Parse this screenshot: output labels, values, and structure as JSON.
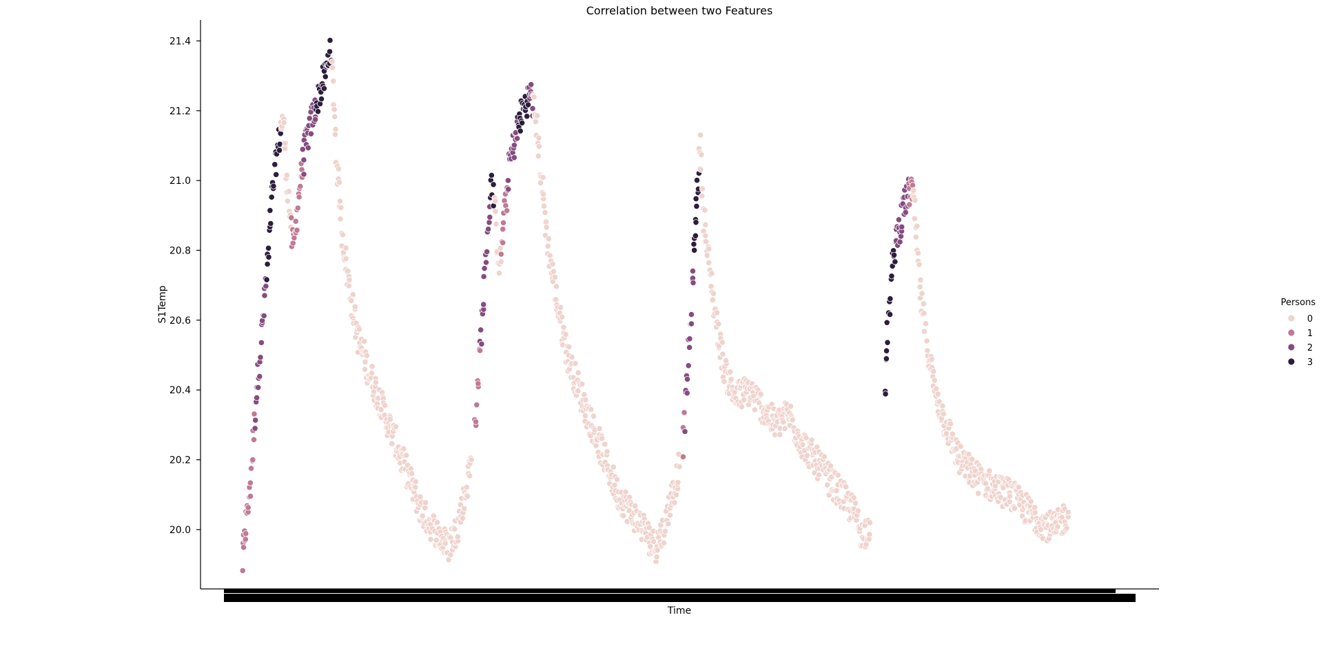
{
  "chart_data": {
    "type": "scatter",
    "title": "Correlation between two Features",
    "xlabel": "Time",
    "ylabel": "S1Temp",
    "ylim": [
      19.83,
      21.46
    ],
    "yticks": [
      "20.0",
      "20.2",
      "20.4",
      "20.6",
      "20.8",
      "21.0",
      "21.2",
      "21.4"
    ],
    "x_tick_labels_overlapping": true,
    "grid": false,
    "legend": {
      "title": "Persons",
      "placement": "right",
      "entries": [
        {
          "label": "0",
          "color": "#efd3cd"
        },
        {
          "label": "1",
          "color": "#c07a93"
        },
        {
          "label": "2",
          "color": "#854c80"
        },
        {
          "label": "3",
          "color": "#2d1d3d"
        }
      ]
    },
    "x_domain_index": [
      0,
      1000
    ],
    "series_outline": [
      {
        "segment": "cycle-1",
        "points": [
          [
            0,
            19.9,
            1
          ],
          [
            3,
            20.0,
            1
          ],
          [
            8,
            20.1,
            1
          ],
          [
            12,
            20.25,
            1
          ],
          [
            16,
            20.4,
            2
          ],
          [
            20,
            20.5,
            2
          ],
          [
            25,
            20.65,
            2
          ],
          [
            30,
            20.8,
            3
          ],
          [
            34,
            20.95,
            3
          ],
          [
            38,
            21.05,
            3
          ],
          [
            42,
            21.12,
            3
          ],
          [
            46,
            21.18,
            0
          ],
          [
            50,
            21.05,
            0
          ],
          [
            54,
            20.9,
            0
          ],
          [
            58,
            20.8,
            1
          ],
          [
            62,
            20.9,
            1
          ],
          [
            66,
            21.0,
            1
          ],
          [
            72,
            21.1,
            2
          ],
          [
            80,
            21.18,
            2
          ],
          [
            88,
            21.25,
            3
          ],
          [
            95,
            21.3,
            3
          ],
          [
            100,
            21.38,
            3
          ],
          [
            104,
            21.25,
            0
          ],
          [
            108,
            21.05,
            0
          ],
          [
            114,
            20.85,
            0
          ],
          [
            122,
            20.7,
            0
          ],
          [
            132,
            20.55,
            0
          ],
          [
            145,
            20.45,
            0
          ],
          [
            160,
            20.35,
            0
          ],
          [
            175,
            20.25,
            0
          ],
          [
            190,
            20.15,
            0
          ],
          [
            205,
            20.05,
            0
          ],
          [
            220,
            20.0,
            0
          ],
          [
            235,
            19.95,
            0
          ],
          [
            245,
            20.0,
            0
          ],
          [
            255,
            20.1,
            0
          ],
          [
            262,
            20.2,
            0
          ]
        ]
      },
      {
        "segment": "cycle-2",
        "points": [
          [
            266,
            20.3,
            1
          ],
          [
            270,
            20.45,
            1
          ],
          [
            274,
            20.6,
            2
          ],
          [
            278,
            20.75,
            2
          ],
          [
            282,
            20.9,
            2
          ],
          [
            286,
            21.0,
            3
          ],
          [
            290,
            20.85,
            0
          ],
          [
            294,
            20.75,
            0
          ],
          [
            298,
            20.85,
            1
          ],
          [
            302,
            20.95,
            1
          ],
          [
            306,
            21.05,
            2
          ],
          [
            312,
            21.12,
            2
          ],
          [
            318,
            21.18,
            3
          ],
          [
            324,
            21.22,
            3
          ],
          [
            330,
            21.25,
            2
          ],
          [
            336,
            21.18,
            0
          ],
          [
            342,
            21.0,
            0
          ],
          [
            350,
            20.8,
            0
          ],
          [
            360,
            20.65,
            0
          ],
          [
            372,
            20.5,
            0
          ],
          [
            385,
            20.4,
            0
          ],
          [
            400,
            20.3,
            0
          ],
          [
            415,
            20.2,
            0
          ],
          [
            430,
            20.1,
            0
          ],
          [
            445,
            20.05,
            0
          ],
          [
            460,
            20.0,
            0
          ],
          [
            472,
            19.95,
            0
          ],
          [
            482,
            20.0,
            0
          ],
          [
            492,
            20.1,
            0
          ],
          [
            500,
            20.18,
            0
          ]
        ]
      },
      {
        "segment": "cycle-3",
        "points": [
          [
            504,
            20.25,
            1
          ],
          [
            508,
            20.4,
            2
          ],
          [
            512,
            20.55,
            2
          ],
          [
            515,
            20.7,
            2
          ],
          [
            518,
            20.85,
            3
          ],
          [
            521,
            21.0,
            3
          ],
          [
            524,
            21.1,
            0
          ],
          [
            528,
            20.9,
            0
          ],
          [
            534,
            20.75,
            0
          ],
          [
            542,
            20.6,
            0
          ],
          [
            552,
            20.45,
            0
          ],
          [
            565,
            20.38,
            0
          ],
          [
            580,
            20.4,
            0
          ],
          [
            595,
            20.35,
            0
          ],
          [
            610,
            20.3,
            0
          ],
          [
            625,
            20.33,
            0
          ],
          [
            640,
            20.25,
            0
          ],
          [
            655,
            20.2,
            0
          ],
          [
            670,
            20.15,
            0
          ],
          [
            685,
            20.1,
            0
          ],
          [
            700,
            20.05,
            0
          ],
          [
            710,
            19.98,
            0
          ],
          [
            718,
            20.02,
            0
          ]
        ]
      },
      {
        "segment": "cycle-4",
        "points": [
          [
            735,
            20.4,
            3
          ],
          [
            738,
            20.55,
            3
          ],
          [
            742,
            20.7,
            3
          ],
          [
            746,
            20.8,
            3
          ],
          [
            750,
            20.85,
            2
          ],
          [
            755,
            20.9,
            2
          ],
          [
            760,
            20.95,
            2
          ],
          [
            765,
            20.98,
            1
          ],
          [
            770,
            20.9,
            0
          ],
          [
            775,
            20.7,
            0
          ],
          [
            782,
            20.55,
            0
          ],
          [
            792,
            20.4,
            0
          ],
          [
            805,
            20.3,
            0
          ],
          [
            820,
            20.2,
            0
          ],
          [
            840,
            20.15,
            0
          ],
          [
            860,
            20.12,
            0
          ],
          [
            880,
            20.1,
            0
          ],
          [
            900,
            20.05,
            0
          ],
          [
            915,
            20.02,
            0
          ],
          [
            930,
            20.0,
            0
          ],
          [
            945,
            20.05,
            0
          ]
        ]
      }
    ]
  }
}
